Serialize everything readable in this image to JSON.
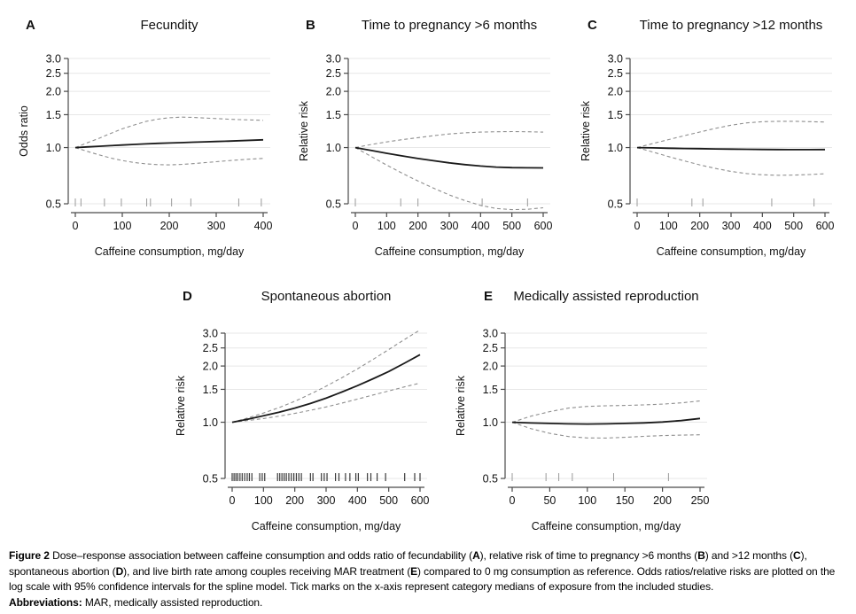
{
  "colors": {
    "curve": "#1a1a1a",
    "ci": "#8f8f8f",
    "grid": "#e7e7e7",
    "axis": "#4a4a4a",
    "rug": "#9a9a9a",
    "rug_dark": "#3a3a3a",
    "text": "#111111"
  },
  "chart_data": [
    {
      "panel": "A",
      "type": "line",
      "title": "Fecundity",
      "xlabel": "Caffeine consumption, mg/day",
      "ylabel": "Odds ratio",
      "y_scale": "log",
      "ylim": [
        0.5,
        3.0
      ],
      "y_ticks": [
        0.5,
        1.0,
        1.5,
        2.0,
        2.5,
        3.0
      ],
      "xlim": [
        0,
        400
      ],
      "x_ticks": [
        0,
        100,
        200,
        300,
        400
      ],
      "x": [
        0,
        25,
        50,
        75,
        100,
        125,
        150,
        175,
        200,
        225,
        250,
        275,
        300,
        325,
        350,
        375,
        400
      ],
      "series": [
        {
          "name": "spline-estimate",
          "style": "solid",
          "values": [
            1.0,
            1.008,
            1.016,
            1.024,
            1.032,
            1.04,
            1.047,
            1.053,
            1.058,
            1.063,
            1.068,
            1.073,
            1.078,
            1.083,
            1.088,
            1.094,
            1.1
          ]
        },
        {
          "name": "ci-upper",
          "style": "dashed",
          "values": [
            1.0,
            1.06,
            1.12,
            1.19,
            1.26,
            1.32,
            1.38,
            1.42,
            1.445,
            1.455,
            1.45,
            1.44,
            1.43,
            1.42,
            1.412,
            1.405,
            1.4
          ]
        },
        {
          "name": "ci-lower",
          "style": "dashed",
          "values": [
            1.0,
            0.955,
            0.915,
            0.88,
            0.852,
            0.832,
            0.818,
            0.81,
            0.808,
            0.812,
            0.82,
            0.83,
            0.84,
            0.85,
            0.86,
            0.868,
            0.875
          ]
        }
      ],
      "rug_x": [
        0,
        12,
        62,
        98,
        152,
        160,
        205,
        246,
        348,
        396
      ]
    },
    {
      "panel": "B",
      "type": "line",
      "title": "Time to pregnancy >6 months",
      "xlabel": "Caffeine consumption, mg/day",
      "ylabel": "Relative risk",
      "y_scale": "log",
      "ylim": [
        0.5,
        3.0
      ],
      "y_ticks": [
        0.5,
        1.0,
        1.5,
        2.0,
        2.5,
        3.0
      ],
      "xlim": [
        0,
        600
      ],
      "x_ticks": [
        0,
        100,
        200,
        300,
        400,
        500,
        600
      ],
      "x": [
        0,
        50,
        100,
        150,
        200,
        250,
        300,
        350,
        400,
        450,
        500,
        550,
        600
      ],
      "series": [
        {
          "name": "spline-estimate",
          "style": "solid",
          "values": [
            1.0,
            0.965,
            0.932,
            0.902,
            0.874,
            0.85,
            0.828,
            0.81,
            0.796,
            0.786,
            0.781,
            0.779,
            0.778
          ]
        },
        {
          "name": "ci-upper",
          "style": "dashed",
          "values": [
            1.0,
            1.038,
            1.072,
            1.103,
            1.13,
            1.158,
            1.183,
            1.2,
            1.21,
            1.215,
            1.218,
            1.215,
            1.21
          ]
        },
        {
          "name": "ci-lower",
          "style": "dashed",
          "values": [
            1.0,
            0.897,
            0.806,
            0.728,
            0.662,
            0.606,
            0.558,
            0.52,
            0.49,
            0.472,
            0.465,
            0.467,
            0.476
          ]
        }
      ],
      "rug_x": [
        0,
        145,
        200,
        405,
        550
      ]
    },
    {
      "panel": "C",
      "type": "line",
      "title": "Time to pregnancy >12 months",
      "xlabel": "Caffeine consumption, mg/day",
      "ylabel": "Relative risk",
      "y_scale": "log",
      "ylim": [
        0.5,
        3.0
      ],
      "y_ticks": [
        0.5,
        1.0,
        1.5,
        2.0,
        2.5,
        3.0
      ],
      "xlim": [
        0,
        600
      ],
      "x_ticks": [
        0,
        100,
        200,
        300,
        400,
        500,
        600
      ],
      "x": [
        0,
        50,
        100,
        150,
        200,
        250,
        300,
        350,
        400,
        450,
        500,
        550,
        600
      ],
      "series": [
        {
          "name": "spline-estimate",
          "style": "solid",
          "values": [
            1.0,
            0.996,
            0.992,
            0.989,
            0.986,
            0.983,
            0.981,
            0.979,
            0.977,
            0.976,
            0.975,
            0.975,
            0.976
          ]
        },
        {
          "name": "ci-upper",
          "style": "dashed",
          "values": [
            1.0,
            1.051,
            1.103,
            1.157,
            1.212,
            1.267,
            1.318,
            1.355,
            1.375,
            1.383,
            1.382,
            1.377,
            1.37
          ]
        },
        {
          "name": "ci-lower",
          "style": "dashed",
          "values": [
            1.0,
            0.946,
            0.895,
            0.849,
            0.808,
            0.773,
            0.745,
            0.726,
            0.715,
            0.711,
            0.712,
            0.717,
            0.724
          ]
        }
      ],
      "rug_x": [
        0,
        175,
        210,
        430,
        565
      ]
    },
    {
      "panel": "D",
      "type": "line",
      "title": "Spontaneous abortion",
      "xlabel": "Caffeine consumption, mg/day",
      "ylabel": "Relative risk",
      "y_scale": "log",
      "ylim": [
        0.5,
        3.0
      ],
      "y_ticks": [
        0.5,
        1.0,
        1.5,
        2.0,
        2.5,
        3.0
      ],
      "xlim": [
        0,
        600
      ],
      "x_ticks": [
        0,
        100,
        200,
        300,
        400,
        500,
        600
      ],
      "x": [
        0,
        50,
        100,
        150,
        200,
        250,
        300,
        350,
        400,
        450,
        500,
        550,
        600
      ],
      "series": [
        {
          "name": "spline-estimate",
          "style": "solid",
          "values": [
            1.0,
            1.038,
            1.082,
            1.132,
            1.19,
            1.26,
            1.345,
            1.45,
            1.57,
            1.71,
            1.87,
            2.07,
            2.3
          ]
        },
        {
          "name": "ci-upper",
          "style": "dashed",
          "values": [
            1.0,
            1.055,
            1.12,
            1.198,
            1.295,
            1.415,
            1.56,
            1.73,
            1.93,
            2.17,
            2.45,
            2.77,
            3.12
          ]
        },
        {
          "name": "ci-lower",
          "style": "dashed",
          "values": [
            1.0,
            1.022,
            1.047,
            1.078,
            1.115,
            1.158,
            1.208,
            1.265,
            1.33,
            1.4,
            1.47,
            1.545,
            1.62
          ]
        }
      ],
      "rug_dark": true,
      "rug_x": [
        0,
        6,
        12,
        18,
        25,
        32,
        40,
        48,
        55,
        63,
        88,
        96,
        104,
        145,
        152,
        159,
        166,
        173,
        181,
        189,
        197,
        205,
        213,
        221,
        250,
        258,
        285,
        294,
        303,
        330,
        341,
        362,
        376,
        395,
        403,
        432,
        443,
        463,
        490,
        551,
        583,
        600
      ]
    },
    {
      "panel": "E",
      "type": "line",
      "title": "Medically assisted reproduction",
      "xlabel": "Caffeine consumption, mg/day",
      "ylabel": "Relative risk",
      "y_scale": "log",
      "ylim": [
        0.5,
        3.0
      ],
      "y_ticks": [
        0.5,
        1.0,
        1.5,
        2.0,
        2.5,
        3.0
      ],
      "xlim": [
        0,
        250
      ],
      "x_ticks": [
        0,
        50,
        100,
        150,
        200,
        250
      ],
      "x": [
        0,
        25,
        50,
        75,
        100,
        125,
        150,
        175,
        200,
        225,
        250
      ],
      "series": [
        {
          "name": "spline-estimate",
          "style": "solid",
          "values": [
            1.0,
            0.991,
            0.985,
            0.98,
            0.978,
            0.98,
            0.985,
            0.992,
            1.003,
            1.02,
            1.048
          ]
        },
        {
          "name": "ci-upper",
          "style": "dashed",
          "values": [
            1.0,
            1.078,
            1.14,
            1.19,
            1.216,
            1.225,
            1.23,
            1.238,
            1.25,
            1.27,
            1.3
          ]
        },
        {
          "name": "ci-lower",
          "style": "dashed",
          "values": [
            1.0,
            0.924,
            0.872,
            0.838,
            0.824,
            0.823,
            0.83,
            0.84,
            0.848,
            0.853,
            0.857
          ]
        }
      ],
      "rug_x": [
        0,
        45,
        62,
        80,
        135,
        208
      ]
    }
  ],
  "caption": {
    "main": [
      {
        "text": "Figure 2 ",
        "bold": true
      },
      {
        "text": "Dose–response association between caffeine consumption and odds ratio of fecundability (",
        "bold": false
      },
      {
        "text": "A",
        "bold": true
      },
      {
        "text": "), relative risk of time to pregnancy >6 months (",
        "bold": false
      },
      {
        "text": "B",
        "bold": true
      },
      {
        "text": ") and >12 months (",
        "bold": false
      },
      {
        "text": "C",
        "bold": true
      },
      {
        "text": "), spontaneous abortion (",
        "bold": false
      },
      {
        "text": "D",
        "bold": true
      },
      {
        "text": "), and live birth rate among couples receiving MAR treatment (",
        "bold": false
      },
      {
        "text": "E",
        "bold": true
      },
      {
        "text": ") compared to 0 mg consumption as reference. Odds ratios/relative risks are plotted on the log scale with 95% confidence intervals for the spline model. Tick marks on the x-axis represent category medians of exposure from the included studies.",
        "bold": false
      }
    ],
    "abbrev": [
      {
        "text": "Abbreviations: ",
        "bold": true
      },
      {
        "text": "MAR, medically assisted reproduction.",
        "bold": false
      }
    ]
  }
}
